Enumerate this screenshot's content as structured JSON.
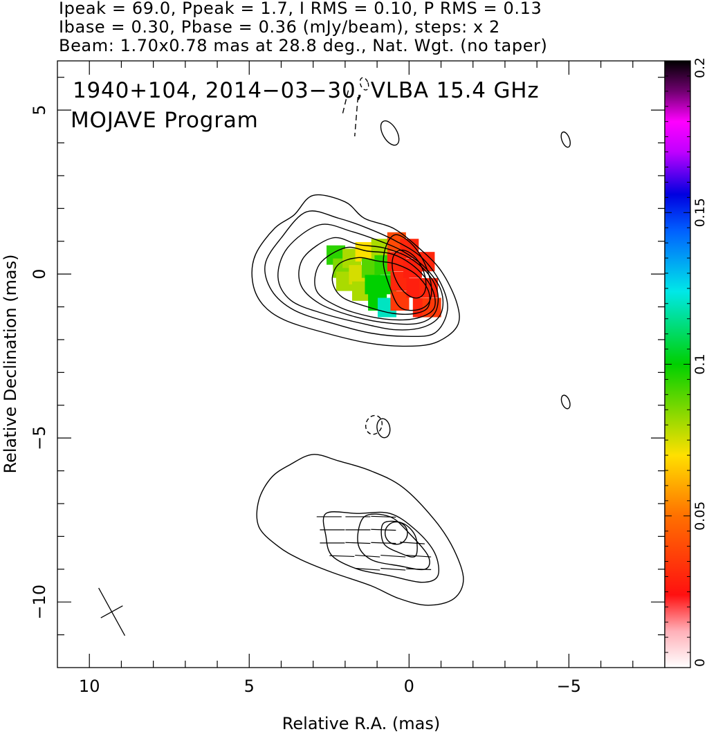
{
  "header": {
    "line1": "Ipeak = 69.0, Ppeak = 1.7, I RMS = 0.10, P RMS = 0.13",
    "line2": "Ibase = 0.30, Pbase = 0.36 (mJy/beam), steps: x 2",
    "line3": "Beam: 1.70x0.78 mas at 28.8 deg., Nat. Wgt. (no taper)"
  },
  "annotation": {
    "line1": "1940+104, 2014−03−30, VLBA 15.4 GHz",
    "line2": "MOJAVE Program"
  },
  "colors": {
    "colorbar_stops": [
      "#ffffff",
      "#ff1010",
      "#ffe000",
      "#00d000",
      "#00e8e8",
      "#0000ff",
      "#ff00ff",
      "#000000"
    ],
    "contour": "#000000"
  },
  "chart_data": {
    "type": "heatmap",
    "xlabel": "Relative R.A. (mas)",
    "ylabel": "Relative Declination (mas)",
    "xlim": [
      11,
      -8
    ],
    "ylim": [
      -12,
      6.5
    ],
    "x_ticks": [
      {
        "value": 10,
        "label": "10"
      },
      {
        "value": 5,
        "label": "5"
      },
      {
        "value": 0,
        "label": "0"
      },
      {
        "value": -5,
        "label": "−5"
      }
    ],
    "y_ticks": [
      {
        "value": 5,
        "label": "5"
      },
      {
        "value": 0,
        "label": "0"
      },
      {
        "value": -5,
        "label": "−5"
      },
      {
        "value": -10,
        "label": "−10"
      }
    ],
    "colorbar": {
      "range": [
        0,
        0.2
      ],
      "ticks": [
        {
          "value": 0.2,
          "label": "0.2"
        },
        {
          "value": 0.15,
          "label": "0.15"
        },
        {
          "value": 0.1,
          "label": "0.1"
        },
        {
          "value": 0.05,
          "label": "0.05"
        },
        {
          "value": 0,
          "label": "0"
        }
      ]
    },
    "beam": {
      "major_mas": 1.7,
      "minor_mas": 0.78,
      "pa_deg": 28.8,
      "center": [
        9.3,
        -10.3
      ]
    },
    "core_contours": [
      [
        [
          3.0,
          2.4
        ],
        [
          2.0,
          2.2
        ],
        [
          1.4,
          1.7
        ],
        [
          0.5,
          1.4
        ],
        [
          -0.3,
          0.8
        ],
        [
          -1.0,
          0.1
        ],
        [
          -1.5,
          -0.9
        ],
        [
          -1.5,
          -1.6
        ],
        [
          -0.8,
          -2.1
        ],
        [
          0.2,
          -2.2
        ],
        [
          1.3,
          -2.1
        ],
        [
          2.6,
          -1.8
        ],
        [
          3.9,
          -1.4
        ],
        [
          4.6,
          -0.9
        ],
        [
          4.9,
          -0.2
        ],
        [
          4.8,
          0.6
        ],
        [
          4.2,
          1.4
        ],
        [
          3.6,
          1.8
        ]
      ],
      [
        [
          3.2,
          1.9
        ],
        [
          2.2,
          1.7
        ],
        [
          1.3,
          1.4
        ],
        [
          0.4,
          1.0
        ],
        [
          -0.4,
          0.5
        ],
        [
          -1.0,
          -0.3
        ],
        [
          -1.2,
          -1.1
        ],
        [
          -0.8,
          -1.8
        ],
        [
          0.1,
          -1.9
        ],
        [
          1.2,
          -1.8
        ],
        [
          2.4,
          -1.5
        ],
        [
          3.6,
          -1.1
        ],
        [
          4.3,
          -0.5
        ],
        [
          4.5,
          0.3
        ],
        [
          4.0,
          1.1
        ]
      ],
      [
        [
          2.8,
          1.5
        ],
        [
          1.8,
          1.3
        ],
        [
          0.9,
          1.0
        ],
        [
          0.2,
          0.7
        ],
        [
          -0.5,
          0.2
        ],
        [
          -1.0,
          -0.5
        ],
        [
          -1.0,
          -1.2
        ],
        [
          -0.5,
          -1.6
        ],
        [
          0.4,
          -1.7
        ],
        [
          1.5,
          -1.5
        ],
        [
          2.7,
          -1.2
        ],
        [
          3.7,
          -0.8
        ],
        [
          4.1,
          -0.1
        ],
        [
          3.8,
          0.8
        ]
      ],
      [
        [
          2.4,
          1.1
        ],
        [
          1.6,
          0.9
        ],
        [
          0.8,
          0.8
        ],
        [
          0.0,
          0.5
        ],
        [
          -0.6,
          0.0
        ],
        [
          -0.9,
          -0.6
        ],
        [
          -0.8,
          -1.2
        ],
        [
          -0.3,
          -1.5
        ],
        [
          0.6,
          -1.5
        ],
        [
          1.7,
          -1.3
        ],
        [
          2.8,
          -0.9
        ],
        [
          3.4,
          -0.3
        ],
        [
          3.3,
          0.5
        ]
      ],
      [
        [
          2.0,
          0.8
        ],
        [
          1.3,
          0.7
        ],
        [
          0.5,
          0.6
        ],
        [
          -0.2,
          0.2
        ],
        [
          -0.7,
          -0.4
        ],
        [
          -0.8,
          -1.0
        ],
        [
          -0.4,
          -1.3
        ],
        [
          0.3,
          -1.4
        ],
        [
          1.2,
          -1.3
        ],
        [
          2.2,
          -1.0
        ],
        [
          2.9,
          -0.5
        ],
        [
          2.8,
          0.3
        ]
      ],
      [
        [
          1.6,
          0.5
        ],
        [
          1.0,
          0.4
        ],
        [
          0.4,
          0.3
        ],
        [
          -0.2,
          0.0
        ],
        [
          -0.6,
          -0.5
        ],
        [
          -0.6,
          -1.0
        ],
        [
          -0.2,
          -1.2
        ],
        [
          0.5,
          -1.2
        ],
        [
          1.3,
          -1.0
        ],
        [
          2.1,
          -0.7
        ],
        [
          2.4,
          -0.2
        ],
        [
          2.2,
          0.3
        ]
      ],
      [
        [
          0.4,
          1.2
        ],
        [
          -0.1,
          0.9
        ],
        [
          -0.5,
          0.3
        ],
        [
          -0.7,
          -0.4
        ],
        [
          -0.6,
          -0.9
        ],
        [
          -0.2,
          -1.1
        ],
        [
          0.3,
          -1.0
        ],
        [
          0.6,
          -0.4
        ],
        [
          0.8,
          0.3
        ],
        [
          0.7,
          0.9
        ]
      ]
    ],
    "core_inner_ellipse": {
      "center": [
        0.0,
        0.0
      ],
      "rx": 0.45,
      "ry": 0.8,
      "rotate": -25
    },
    "jet_contours": [
      [
        [
          3.0,
          -5.5
        ],
        [
          2.2,
          -5.7
        ],
        [
          1.2,
          -6.0
        ],
        [
          0.2,
          -6.5
        ],
        [
          -0.8,
          -7.5
        ],
        [
          -1.4,
          -8.4
        ],
        [
          -1.7,
          -9.3
        ],
        [
          -1.4,
          -9.9
        ],
        [
          -0.6,
          -10.1
        ],
        [
          0.3,
          -9.9
        ],
        [
          1.2,
          -9.5
        ],
        [
          2.4,
          -9.1
        ],
        [
          3.4,
          -8.7
        ],
        [
          4.1,
          -8.3
        ],
        [
          4.7,
          -7.7
        ],
        [
          4.7,
          -6.9
        ],
        [
          4.3,
          -6.2
        ],
        [
          3.7,
          -5.8
        ]
      ],
      [
        [
          2.6,
          -7.3
        ],
        [
          1.6,
          -7.3
        ],
        [
          0.6,
          -7.3
        ],
        [
          -0.2,
          -7.8
        ],
        [
          -0.8,
          -8.5
        ],
        [
          -0.9,
          -9.2
        ],
        [
          -0.4,
          -9.4
        ],
        [
          0.6,
          -9.2
        ],
        [
          1.6,
          -9.0
        ],
        [
          2.4,
          -8.6
        ],
        [
          2.6,
          -8.0
        ]
      ],
      [
        [
          1.4,
          -7.4
        ],
        [
          0.6,
          -7.4
        ],
        [
          0.0,
          -7.9
        ],
        [
          -0.6,
          -8.6
        ],
        [
          -0.5,
          -9.0
        ],
        [
          0.3,
          -8.9
        ],
        [
          1.2,
          -8.7
        ],
        [
          1.6,
          -8.2
        ]
      ],
      [
        [
          0.8,
          -7.6
        ],
        [
          0.2,
          -7.6
        ],
        [
          -0.2,
          -8.0
        ],
        [
          -0.2,
          -8.6
        ],
        [
          0.3,
          -8.5
        ],
        [
          0.8,
          -8.2
        ]
      ]
    ],
    "jet_inner_ellipse": {
      "center": [
        0.4,
        -7.9
      ],
      "rx": 0.35,
      "ry": 0.35,
      "rotate": 0
    },
    "minor_contours": [
      {
        "center": [
          0.6,
          4.3
        ],
        "rx": 0.22,
        "ry": 0.42,
        "rotate": -30,
        "dashed": false
      },
      {
        "center": [
          -4.9,
          4.1
        ],
        "rx": 0.12,
        "ry": 0.25,
        "rotate": -20,
        "dashed": false
      },
      {
        "center": [
          -4.9,
          -3.9
        ],
        "rx": 0.12,
        "ry": 0.22,
        "rotate": -20,
        "dashed": false
      },
      {
        "center": [
          0.8,
          -4.7
        ],
        "rx": 0.2,
        "ry": 0.3,
        "rotate": -10,
        "dashed": false
      },
      {
        "center": [
          1.1,
          -4.6
        ],
        "rx": 0.25,
        "ry": 0.3,
        "rotate": 20,
        "dashed": true
      },
      {
        "center": [
          1.4,
          5.8
        ],
        "rx": 0.12,
        "ry": 0.2,
        "rotate": -20,
        "dashed": true
      }
    ],
    "dashed_segments": [
      [
        [
          1.6,
          5.4
        ],
        [
          1.7,
          4.2
        ]
      ],
      [
        [
          1.9,
          5.6
        ],
        [
          2.1,
          4.8
        ]
      ]
    ],
    "evpa_vectors": [
      {
        "x": 2.5,
        "y": -7.4,
        "angle_deg": 0
      },
      {
        "x": 1.6,
        "y": -7.4,
        "angle_deg": 0
      },
      {
        "x": 0.8,
        "y": -7.4,
        "angle_deg": 2
      },
      {
        "x": 2.4,
        "y": -7.8,
        "angle_deg": 0
      },
      {
        "x": 1.6,
        "y": -7.8,
        "angle_deg": 0
      },
      {
        "x": 0.8,
        "y": -7.8,
        "angle_deg": 2
      },
      {
        "x": 2.4,
        "y": -8.2,
        "angle_deg": 0
      },
      {
        "x": 1.6,
        "y": -8.2,
        "angle_deg": 2
      },
      {
        "x": 0.8,
        "y": -8.2,
        "angle_deg": 2
      },
      {
        "x": -0.1,
        "y": -8.2,
        "angle_deg": 4
      },
      {
        "x": 2.1,
        "y": -8.6,
        "angle_deg": 2
      },
      {
        "x": 1.3,
        "y": -8.6,
        "angle_deg": 4
      },
      {
        "x": 0.5,
        "y": -8.6,
        "angle_deg": 4
      },
      {
        "x": -0.3,
        "y": -8.6,
        "angle_deg": 4
      },
      {
        "x": 1.3,
        "y": -9.0,
        "angle_deg": 4
      },
      {
        "x": 0.5,
        "y": -9.0,
        "angle_deg": 4
      },
      {
        "x": -0.3,
        "y": -9.0,
        "angle_deg": 2
      }
    ],
    "fractional_polarization_patches": [
      {
        "x": 2.3,
        "y": 0.6,
        "v": 0.095
      },
      {
        "x": 2.1,
        "y": 0.2,
        "v": 0.085
      },
      {
        "x": 2.0,
        "y": -0.2,
        "v": 0.08
      },
      {
        "x": 1.8,
        "y": 0.5,
        "v": 0.08
      },
      {
        "x": 1.6,
        "y": 0.0,
        "v": 0.075
      },
      {
        "x": 1.5,
        "y": -0.5,
        "v": 0.08
      },
      {
        "x": 1.4,
        "y": 0.7,
        "v": 0.07
      },
      {
        "x": 1.2,
        "y": 0.2,
        "v": 0.09
      },
      {
        "x": 1.1,
        "y": -0.3,
        "v": 0.1
      },
      {
        "x": 1.0,
        "y": -0.8,
        "v": 0.1
      },
      {
        "x": 0.9,
        "y": 0.8,
        "v": 0.08
      },
      {
        "x": 0.8,
        "y": 0.3,
        "v": 0.095
      },
      {
        "x": 0.7,
        "y": -0.3,
        "v": 0.1
      },
      {
        "x": 0.7,
        "y": -1.0,
        "v": 0.12
      },
      {
        "x": 0.4,
        "y": 1.0,
        "v": 0.04
      },
      {
        "x": 0.4,
        "y": 0.4,
        "v": 0.03
      },
      {
        "x": 0.3,
        "y": -0.2,
        "v": 0.03
      },
      {
        "x": 0.3,
        "y": -0.8,
        "v": 0.035
      },
      {
        "x": 0.0,
        "y": 0.8,
        "v": 0.03
      },
      {
        "x": -0.1,
        "y": 0.2,
        "v": 0.028
      },
      {
        "x": -0.2,
        "y": -0.4,
        "v": 0.028
      },
      {
        "x": -0.4,
        "y": -1.0,
        "v": 0.03
      },
      {
        "x": -0.5,
        "y": 0.4,
        "v": 0.03
      },
      {
        "x": -0.6,
        "y": -0.4,
        "v": 0.03
      },
      {
        "x": -0.7,
        "y": -1.0,
        "v": 0.035
      }
    ]
  }
}
